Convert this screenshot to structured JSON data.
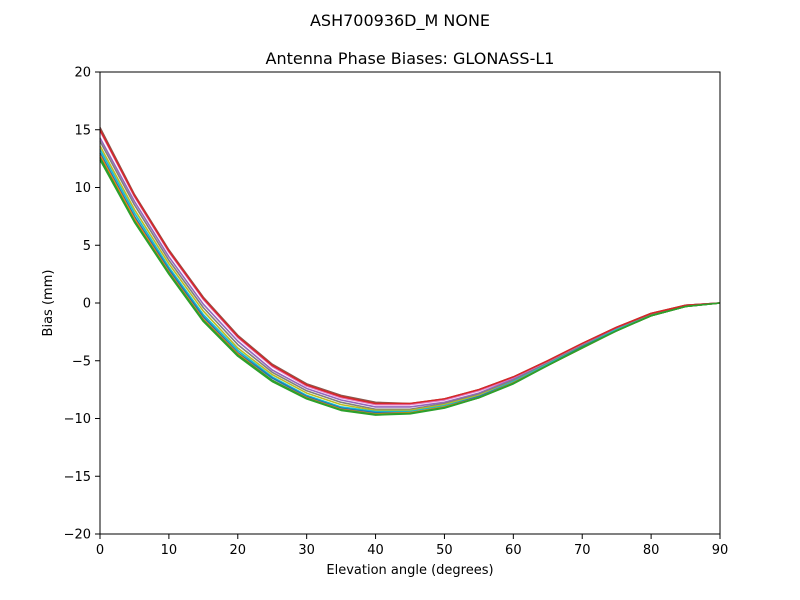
{
  "chart_data": {
    "type": "line",
    "suptitle": "ASH700936D_M    NONE",
    "title": "Antenna Phase Biases: GLONASS-L1",
    "xlabel": "Elevation angle (degrees)",
    "ylabel": "Bias (mm)",
    "xlim": [
      0,
      90
    ],
    "ylim": [
      -20,
      20
    ],
    "xticks": [
      0,
      10,
      20,
      30,
      40,
      50,
      60,
      70,
      80,
      90
    ],
    "yticks": [
      -20,
      -15,
      -10,
      -5,
      0,
      5,
      10,
      15,
      20
    ],
    "x": [
      0,
      5,
      10,
      15,
      20,
      25,
      30,
      35,
      40,
      45,
      50,
      55,
      60,
      65,
      70,
      75,
      80,
      85,
      90
    ],
    "grid": false,
    "legend": false,
    "series": [
      {
        "color": "#8c564b",
        "values": [
          15.2,
          9.4,
          4.6,
          0.5,
          -2.8,
          -5.3,
          -7.0,
          -8.0,
          -8.6,
          -8.7,
          -8.3,
          -7.5,
          -6.4,
          -5.0,
          -3.5,
          -2.1,
          -0.9,
          -0.2,
          0.0
        ]
      },
      {
        "color": "#e377c2",
        "values": [
          14.9,
          9.2,
          4.4,
          0.3,
          -3.0,
          -5.5,
          -7.2,
          -8.2,
          -8.8,
          -8.8,
          -8.4,
          -7.6,
          -6.5,
          -5.1,
          -3.6,
          -2.2,
          -1.0,
          -0.2,
          0.0
        ]
      },
      {
        "color": "#9467bd",
        "values": [
          14.3,
          8.8,
          4.0,
          -0.1,
          -3.3,
          -5.8,
          -7.4,
          -8.4,
          -9.0,
          -9.0,
          -8.6,
          -7.8,
          -6.6,
          -5.2,
          -3.7,
          -2.2,
          -1.0,
          -0.2,
          0.0
        ]
      },
      {
        "color": "#7f7f7f",
        "values": [
          14.0,
          8.5,
          3.7,
          -0.4,
          -3.6,
          -6.0,
          -7.6,
          -8.6,
          -9.2,
          -9.2,
          -8.7,
          -7.9,
          -6.7,
          -5.2,
          -3.7,
          -2.3,
          -1.0,
          -0.2,
          0.0
        ]
      },
      {
        "color": "#bcbd22",
        "values": [
          13.6,
          8.1,
          3.4,
          -0.7,
          -3.9,
          -6.2,
          -7.8,
          -8.8,
          -9.3,
          -9.3,
          -8.8,
          -8.0,
          -6.8,
          -5.3,
          -3.8,
          -2.3,
          -1.1,
          -0.3,
          0.0
        ]
      },
      {
        "color": "#17becf",
        "values": [
          13.3,
          7.8,
          3.1,
          -1.0,
          -4.1,
          -6.4,
          -8.0,
          -9.0,
          -9.4,
          -9.4,
          -8.9,
          -8.1,
          -6.8,
          -5.3,
          -3.8,
          -2.3,
          -1.1,
          -0.3,
          0.0
        ]
      },
      {
        "color": "#1f77b4",
        "values": [
          13.0,
          7.5,
          2.9,
          -1.2,
          -4.3,
          -6.5,
          -8.1,
          -9.1,
          -9.5,
          -9.5,
          -9.0,
          -8.1,
          -6.9,
          -5.4,
          -3.8,
          -2.4,
          -1.1,
          -0.3,
          0.0
        ]
      },
      {
        "color": "#ff7f0e",
        "values": [
          12.8,
          7.3,
          2.7,
          -1.4,
          -4.4,
          -6.7,
          -8.2,
          -9.2,
          -9.6,
          -9.5,
          -9.0,
          -8.2,
          -6.9,
          -5.4,
          -3.9,
          -2.4,
          -1.1,
          -0.3,
          0.0
        ]
      },
      {
        "color": "#2ca02c",
        "values": [
          12.4,
          7.0,
          2.5,
          -1.6,
          -4.6,
          -6.8,
          -8.3,
          -9.3,
          -9.7,
          -9.6,
          -9.1,
          -8.2,
          -7.0,
          -5.4,
          -3.9,
          -2.4,
          -1.1,
          -0.3,
          0.0
        ]
      },
      {
        "color": "#d62728",
        "values": [
          15.0,
          9.3,
          4.5,
          0.4,
          -2.9,
          -5.4,
          -7.1,
          -8.1,
          -8.7,
          -8.7,
          -8.3,
          -7.5,
          -6.4,
          -5.0,
          -3.5,
          -2.1,
          -0.9,
          -0.2,
          0.0
        ]
      },
      {
        "color": "#2ca02c",
        "values": [
          12.6,
          7.1,
          2.6,
          -1.5,
          -4.5,
          -6.7,
          -8.25,
          -9.25,
          -9.65,
          -9.55,
          -9.05,
          -8.2,
          -6.95,
          -5.4,
          -3.85,
          -2.4,
          -1.1,
          -0.3,
          0.0
        ]
      }
    ]
  }
}
